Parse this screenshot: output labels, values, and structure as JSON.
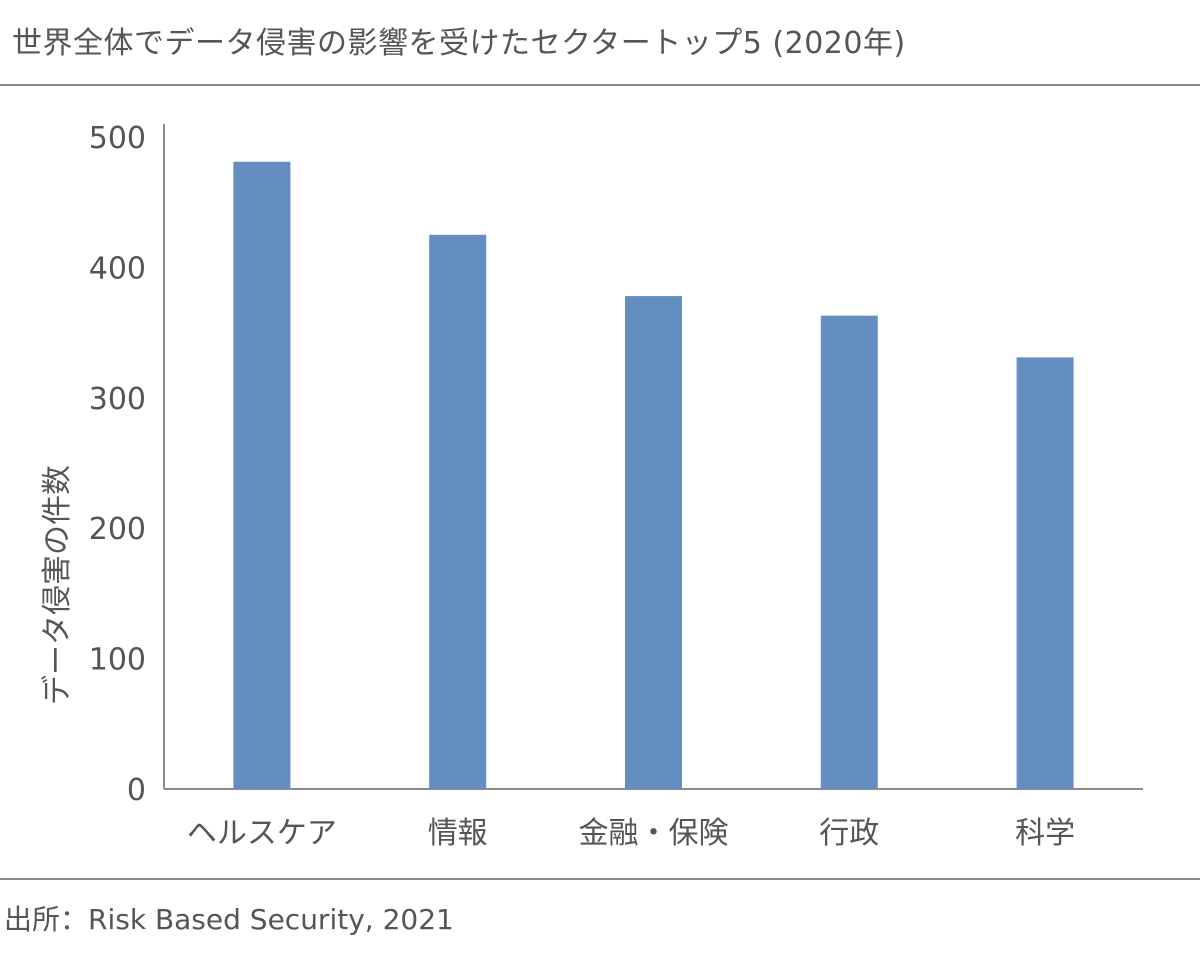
{
  "title": "世界全体でデータ侵害の影響を受けたセクタートップ5 (2020年)",
  "source": "出所：Risk Based Security, 2021",
  "chart_data": {
    "type": "bar",
    "title": "世界全体でデータ侵害の影響を受けたセクタートップ5 (2020年)",
    "categories": [
      "ヘルスケア",
      "情報",
      "金融・保険",
      "行政",
      "科学"
    ],
    "values": [
      481,
      425,
      378,
      363,
      331
    ],
    "xlabel": "",
    "ylabel": "データ侵害の件数",
    "ylim": [
      0,
      500
    ],
    "yticks": [
      0,
      100,
      200,
      300,
      400,
      500
    ],
    "grid": false,
    "legend": "none",
    "bar_color": "#648dc0",
    "axis_color": "#8c8c8c"
  }
}
